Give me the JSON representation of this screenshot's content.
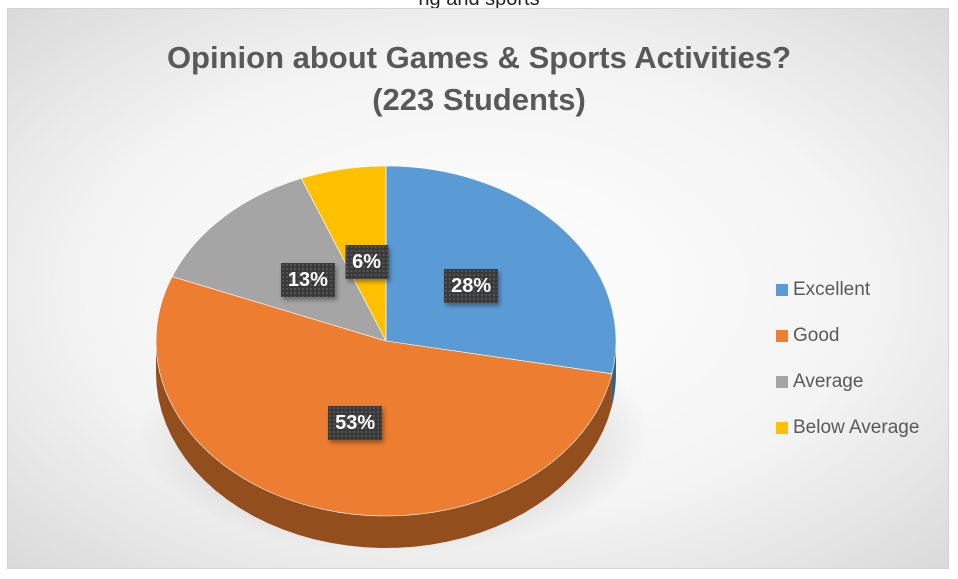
{
  "page": {
    "top_caption": "ng and sports"
  },
  "chart_data": {
    "type": "pie",
    "title": "Opinion about Games & Sports Activities?",
    "subtitle": "(223 Students)",
    "categories": [
      "Excellent",
      "Good",
      "Average",
      "Below Average"
    ],
    "values": [
      28,
      53,
      13,
      6
    ],
    "data_labels": [
      "28%",
      "53%",
      "13%",
      "6%"
    ],
    "colors": [
      "#5B9BD5",
      "#ED7D31",
      "#A5A5A5",
      "#FFC000"
    ],
    "legend_position": "right",
    "style": "3d"
  }
}
